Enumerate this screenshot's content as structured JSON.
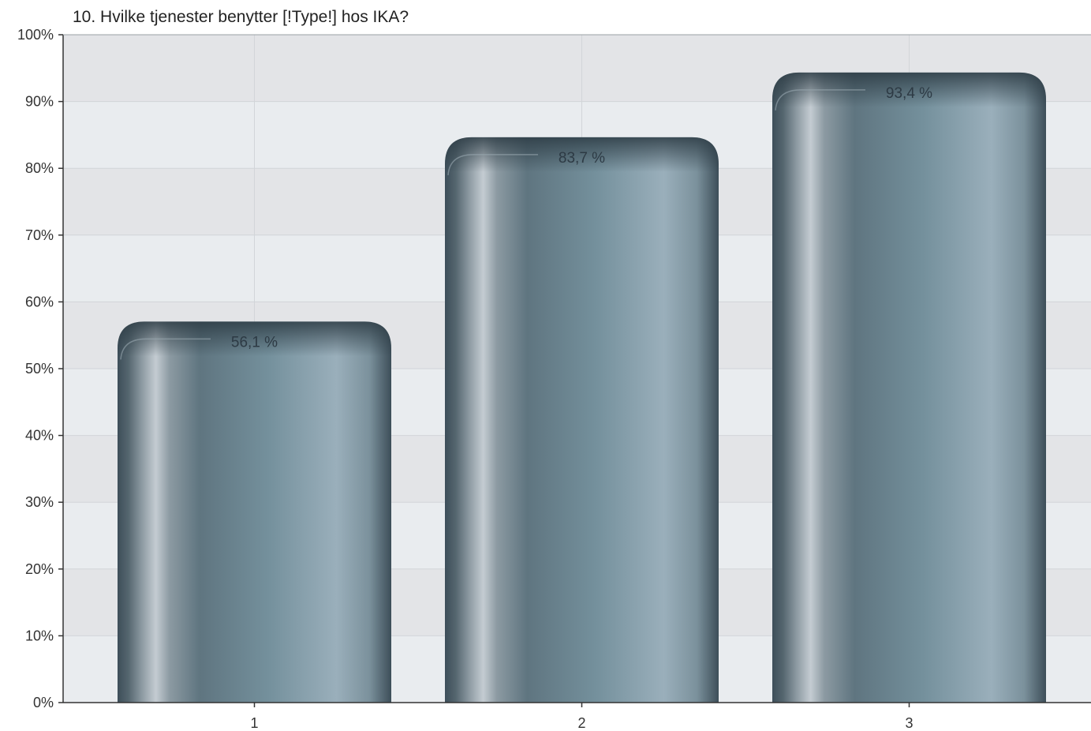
{
  "chart_data": {
    "type": "bar",
    "title": "10. Hvilke tjenester benytter [!Type!] hos IKA?",
    "xlabel": "",
    "ylabel": "",
    "categories": [
      "1",
      "2",
      "3"
    ],
    "values": [
      56.1,
      83.7,
      93.4
    ],
    "data_labels": [
      "56,1 %",
      "83,7 %",
      "93,4 %"
    ],
    "ylim": [
      0,
      100
    ],
    "yticks": [
      0,
      10,
      20,
      30,
      40,
      50,
      60,
      70,
      80,
      90,
      100
    ],
    "ytick_labels": [
      "0%",
      "10%",
      "20%",
      "30%",
      "40%",
      "50%",
      "60%",
      "70%",
      "80%",
      "90%",
      "100%"
    ],
    "grid": true,
    "legend": "none",
    "colors": {
      "bar_dark": "#3d4e59",
      "bar_mid": "#66808d",
      "bar_light": "#9aafbb",
      "bar_highlight": "#c4ccd2",
      "band_light": "#e9ecef",
      "band_dark": "#e3e4e7",
      "grid": "#d2d5d9",
      "axis": "#333333"
    }
  }
}
